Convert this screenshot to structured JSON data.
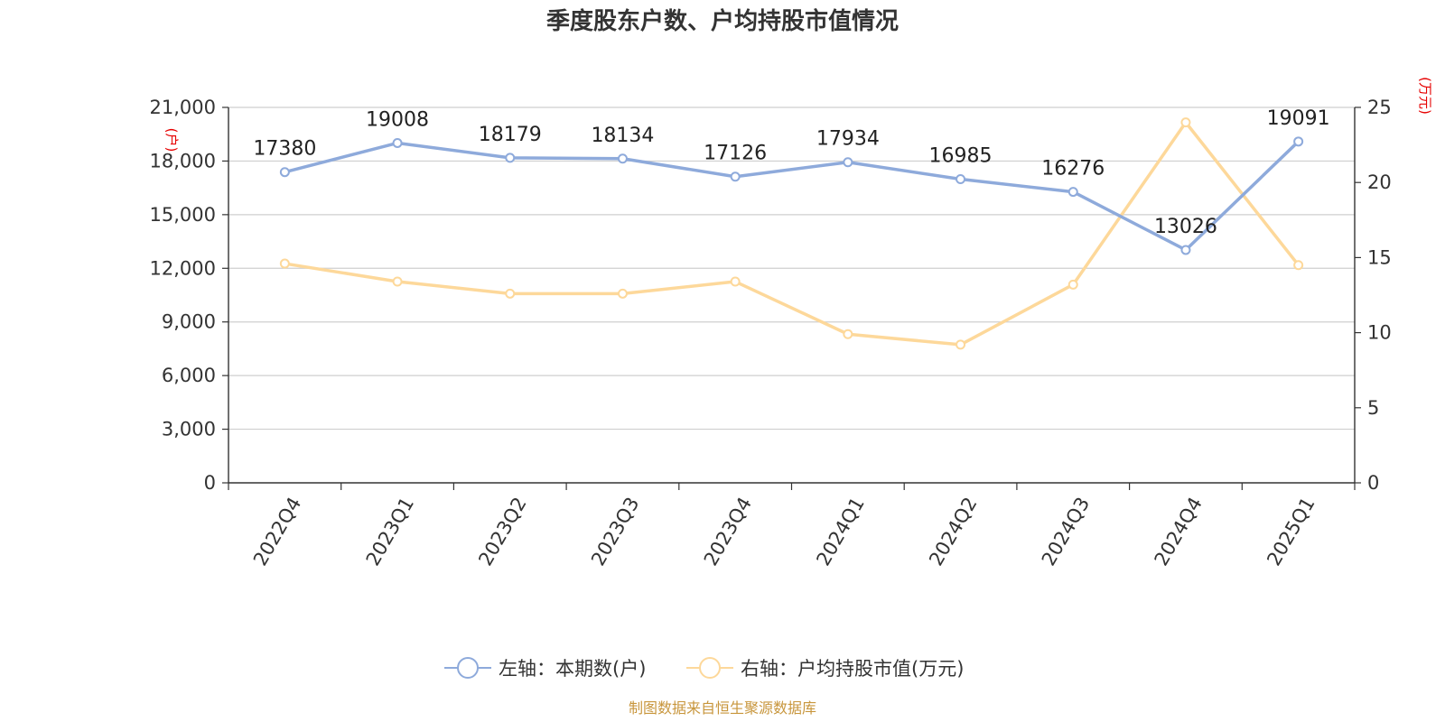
{
  "chart_data": {
    "type": "line",
    "title": "季度股东户数、户均持股市值情况",
    "categories": [
      "2022Q4",
      "2023Q1",
      "2023Q2",
      "2023Q3",
      "2023Q4",
      "2024Q1",
      "2024Q2",
      "2024Q3",
      "2024Q4",
      "2025Q1"
    ],
    "left_axis": {
      "unit": "(户)",
      "ylim": [
        0,
        21000
      ],
      "ticks": [
        "0",
        "3,000",
        "6,000",
        "9,000",
        "12,000",
        "15,000",
        "18,000",
        "21,000"
      ],
      "tick_values": [
        0,
        3000,
        6000,
        9000,
        12000,
        15000,
        18000,
        21000
      ]
    },
    "right_axis": {
      "unit": "(万元)",
      "ylim": [
        0,
        25
      ],
      "ticks": [
        "0",
        "5",
        "10",
        "15",
        "20",
        "25"
      ],
      "tick_values": [
        0,
        5,
        10,
        15,
        20,
        25
      ]
    },
    "series": [
      {
        "name": "左轴：本期数(户)",
        "axis": "left",
        "color": "#8eaadb",
        "values": [
          17380,
          19008,
          18179,
          18134,
          17126,
          17934,
          16985,
          16276,
          13026,
          19091
        ],
        "labels": [
          "17380",
          "19008",
          "18179",
          "18134",
          "17126",
          "17934",
          "16985",
          "16276",
          "13026",
          "19091"
        ]
      },
      {
        "name": "右轴：户均持股市值(万元)",
        "axis": "right",
        "color": "#fdd89a",
        "values": [
          14.6,
          13.4,
          12.6,
          12.6,
          13.4,
          9.9,
          9.2,
          13.2,
          24.0,
          14.5
        ]
      }
    ],
    "grid": true,
    "legend_position": "bottom-center"
  },
  "source_text": "制图数据来自恒生聚源数据库"
}
